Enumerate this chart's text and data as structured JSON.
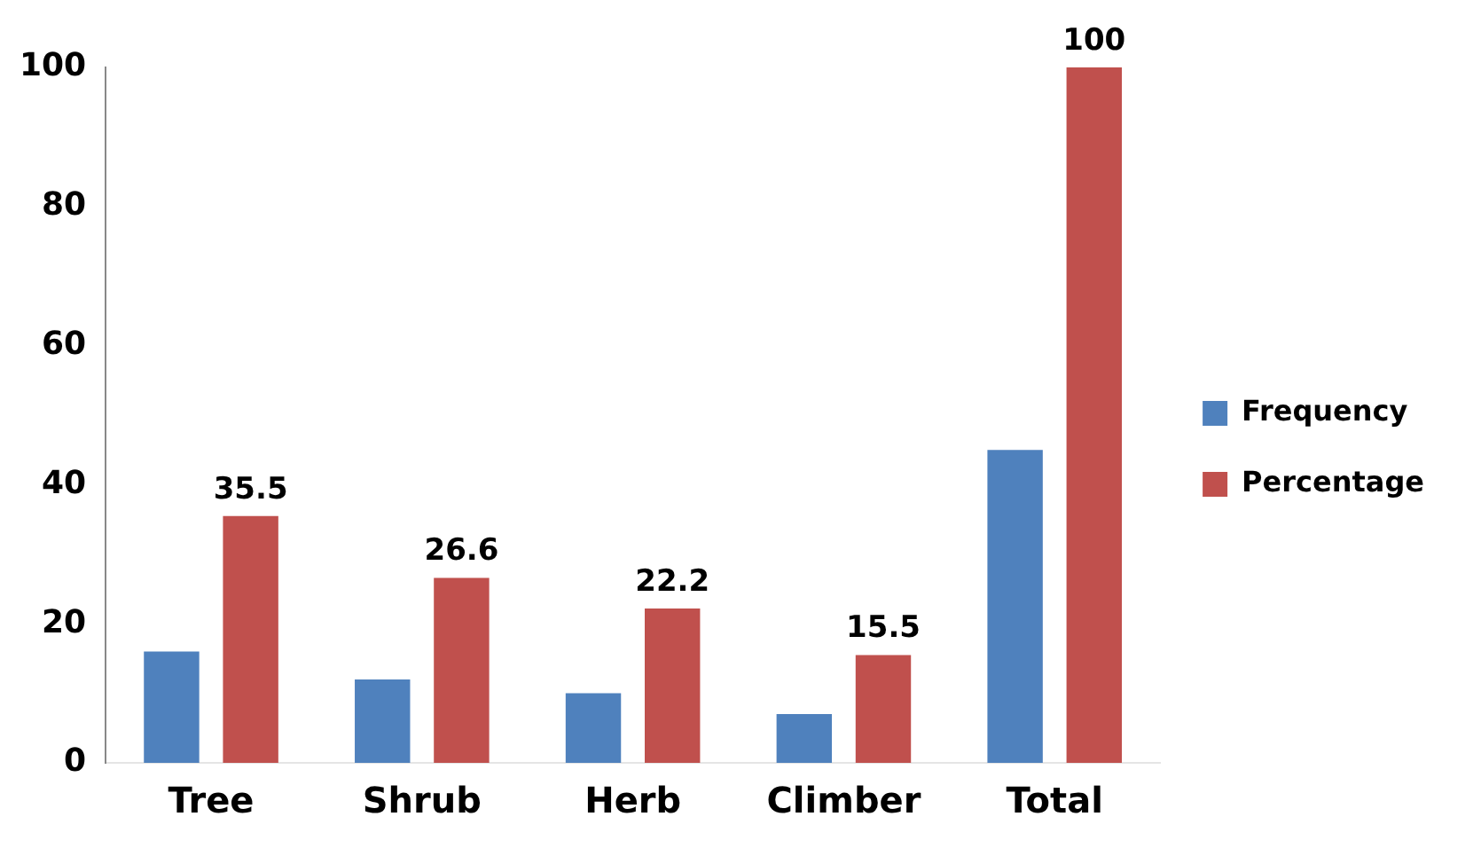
{
  "chart_data": {
    "type": "bar",
    "categories": [
      "Tree",
      "Shrub",
      "Herb",
      "Climber",
      "Total"
    ],
    "series": [
      {
        "name": "Frequency",
        "color": "#4f81bd",
        "values": [
          16,
          12,
          10,
          7,
          45
        ]
      },
      {
        "name": "Percentage",
        "color": "#c0504d",
        "values": [
          35.5,
          26.6,
          22.2,
          15.5,
          100
        ],
        "value_labels": [
          "35.5",
          "26.6",
          "22.2",
          "15.5",
          "100"
        ]
      }
    ],
    "ylim": [
      0,
      100
    ],
    "yticks": [
      0,
      20,
      40,
      60,
      80,
      100
    ],
    "grid": false,
    "legend": "right"
  }
}
